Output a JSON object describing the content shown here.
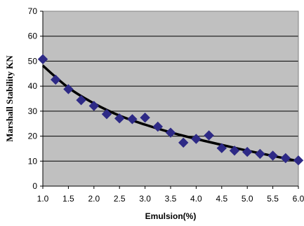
{
  "chart_data": {
    "type": "scatter",
    "title": "",
    "xlabel": "Emulsion(%)",
    "ylabel": "Marshall Stability KN",
    "xlim": [
      1.0,
      6.0
    ],
    "ylim": [
      0,
      70
    ],
    "xticks": [
      "1.0",
      "1.5",
      "2.0",
      "2.5",
      "3.0",
      "3.5",
      "4.0",
      "4.5",
      "5.0",
      "5.5",
      "6.0"
    ],
    "yticks": [
      "0",
      "10",
      "20",
      "30",
      "40",
      "50",
      "60",
      "70"
    ],
    "grid": "horizontal",
    "legend": "none",
    "series": [
      {
        "marker": "diamond",
        "color": "#2E2A86",
        "x": [
          1.0,
          1.25,
          1.5,
          1.75,
          2.0,
          2.25,
          2.5,
          2.75,
          3.0,
          3.25,
          3.5,
          3.75,
          4.0,
          4.25,
          4.5,
          4.75,
          5.0,
          5.25,
          5.5,
          5.75,
          6.0
        ],
        "y": [
          50.8,
          42.6,
          38.8,
          34.4,
          32.1,
          28.8,
          27.1,
          26.8,
          27.4,
          23.8,
          21.4,
          17.4,
          18.9,
          20.3,
          15.2,
          14.2,
          13.7,
          12.9,
          12.2,
          11.2,
          10.3
        ]
      }
    ],
    "trendline": {
      "color": "#000000",
      "x": [
        1.0,
        1.5,
        2.0,
        2.5,
        3.0,
        3.5,
        4.0,
        4.5,
        5.0,
        5.5,
        6.0
      ],
      "y": [
        48.2,
        39.4,
        33.1,
        28.2,
        24.6,
        21.5,
        18.9,
        16.5,
        14.2,
        12.1,
        10.0
      ]
    },
    "colors": {
      "plot_background": "#C0C0C0",
      "gridline": "#000000",
      "marker": "#2E2A86"
    }
  }
}
